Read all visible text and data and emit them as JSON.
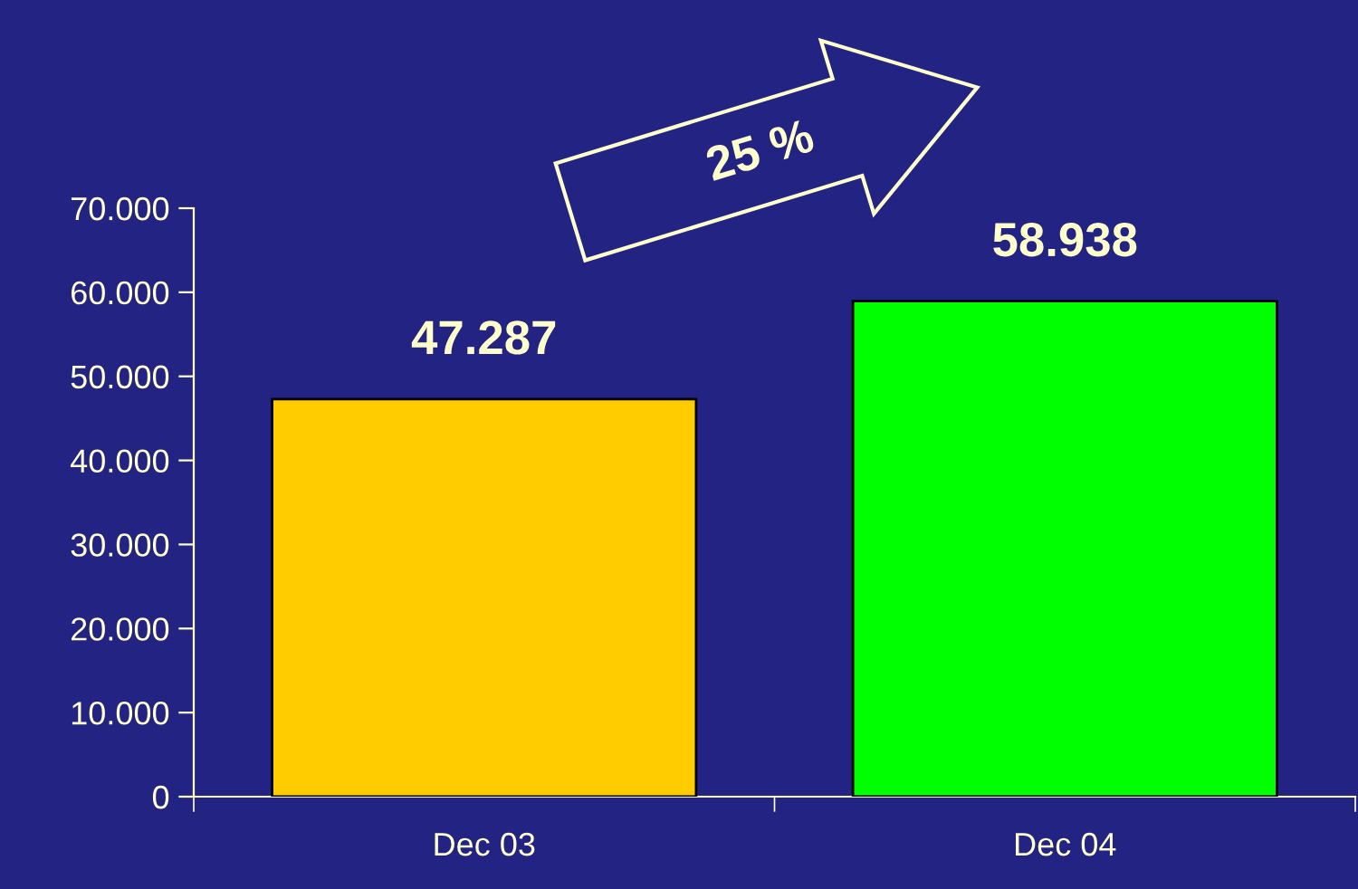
{
  "chart_data": {
    "type": "bar",
    "categories": [
      "Dec 03",
      "Dec 04"
    ],
    "values": [
      47287,
      58938
    ],
    "colors": [
      "#ffcc00",
      "#00ff00"
    ],
    "value_labels": [
      "47.287",
      "58.938"
    ],
    "ylim": [
      0,
      70000
    ],
    "yticks": [
      0,
      {
        "value": 10000,
        "label": "10.000"
      },
      {
        "value": 20000,
        "label": "20.000"
      },
      {
        "value": 30000,
        "label": "30.000"
      },
      {
        "value": 40000,
        "label": "40.000"
      },
      {
        "value": 50000,
        "label": "50.000"
      },
      {
        "value": 60000,
        "label": "60.000"
      },
      {
        "value": 70000,
        "label": "70.000"
      }
    ],
    "annotations": [
      "25 %"
    ],
    "grid": false
  }
}
